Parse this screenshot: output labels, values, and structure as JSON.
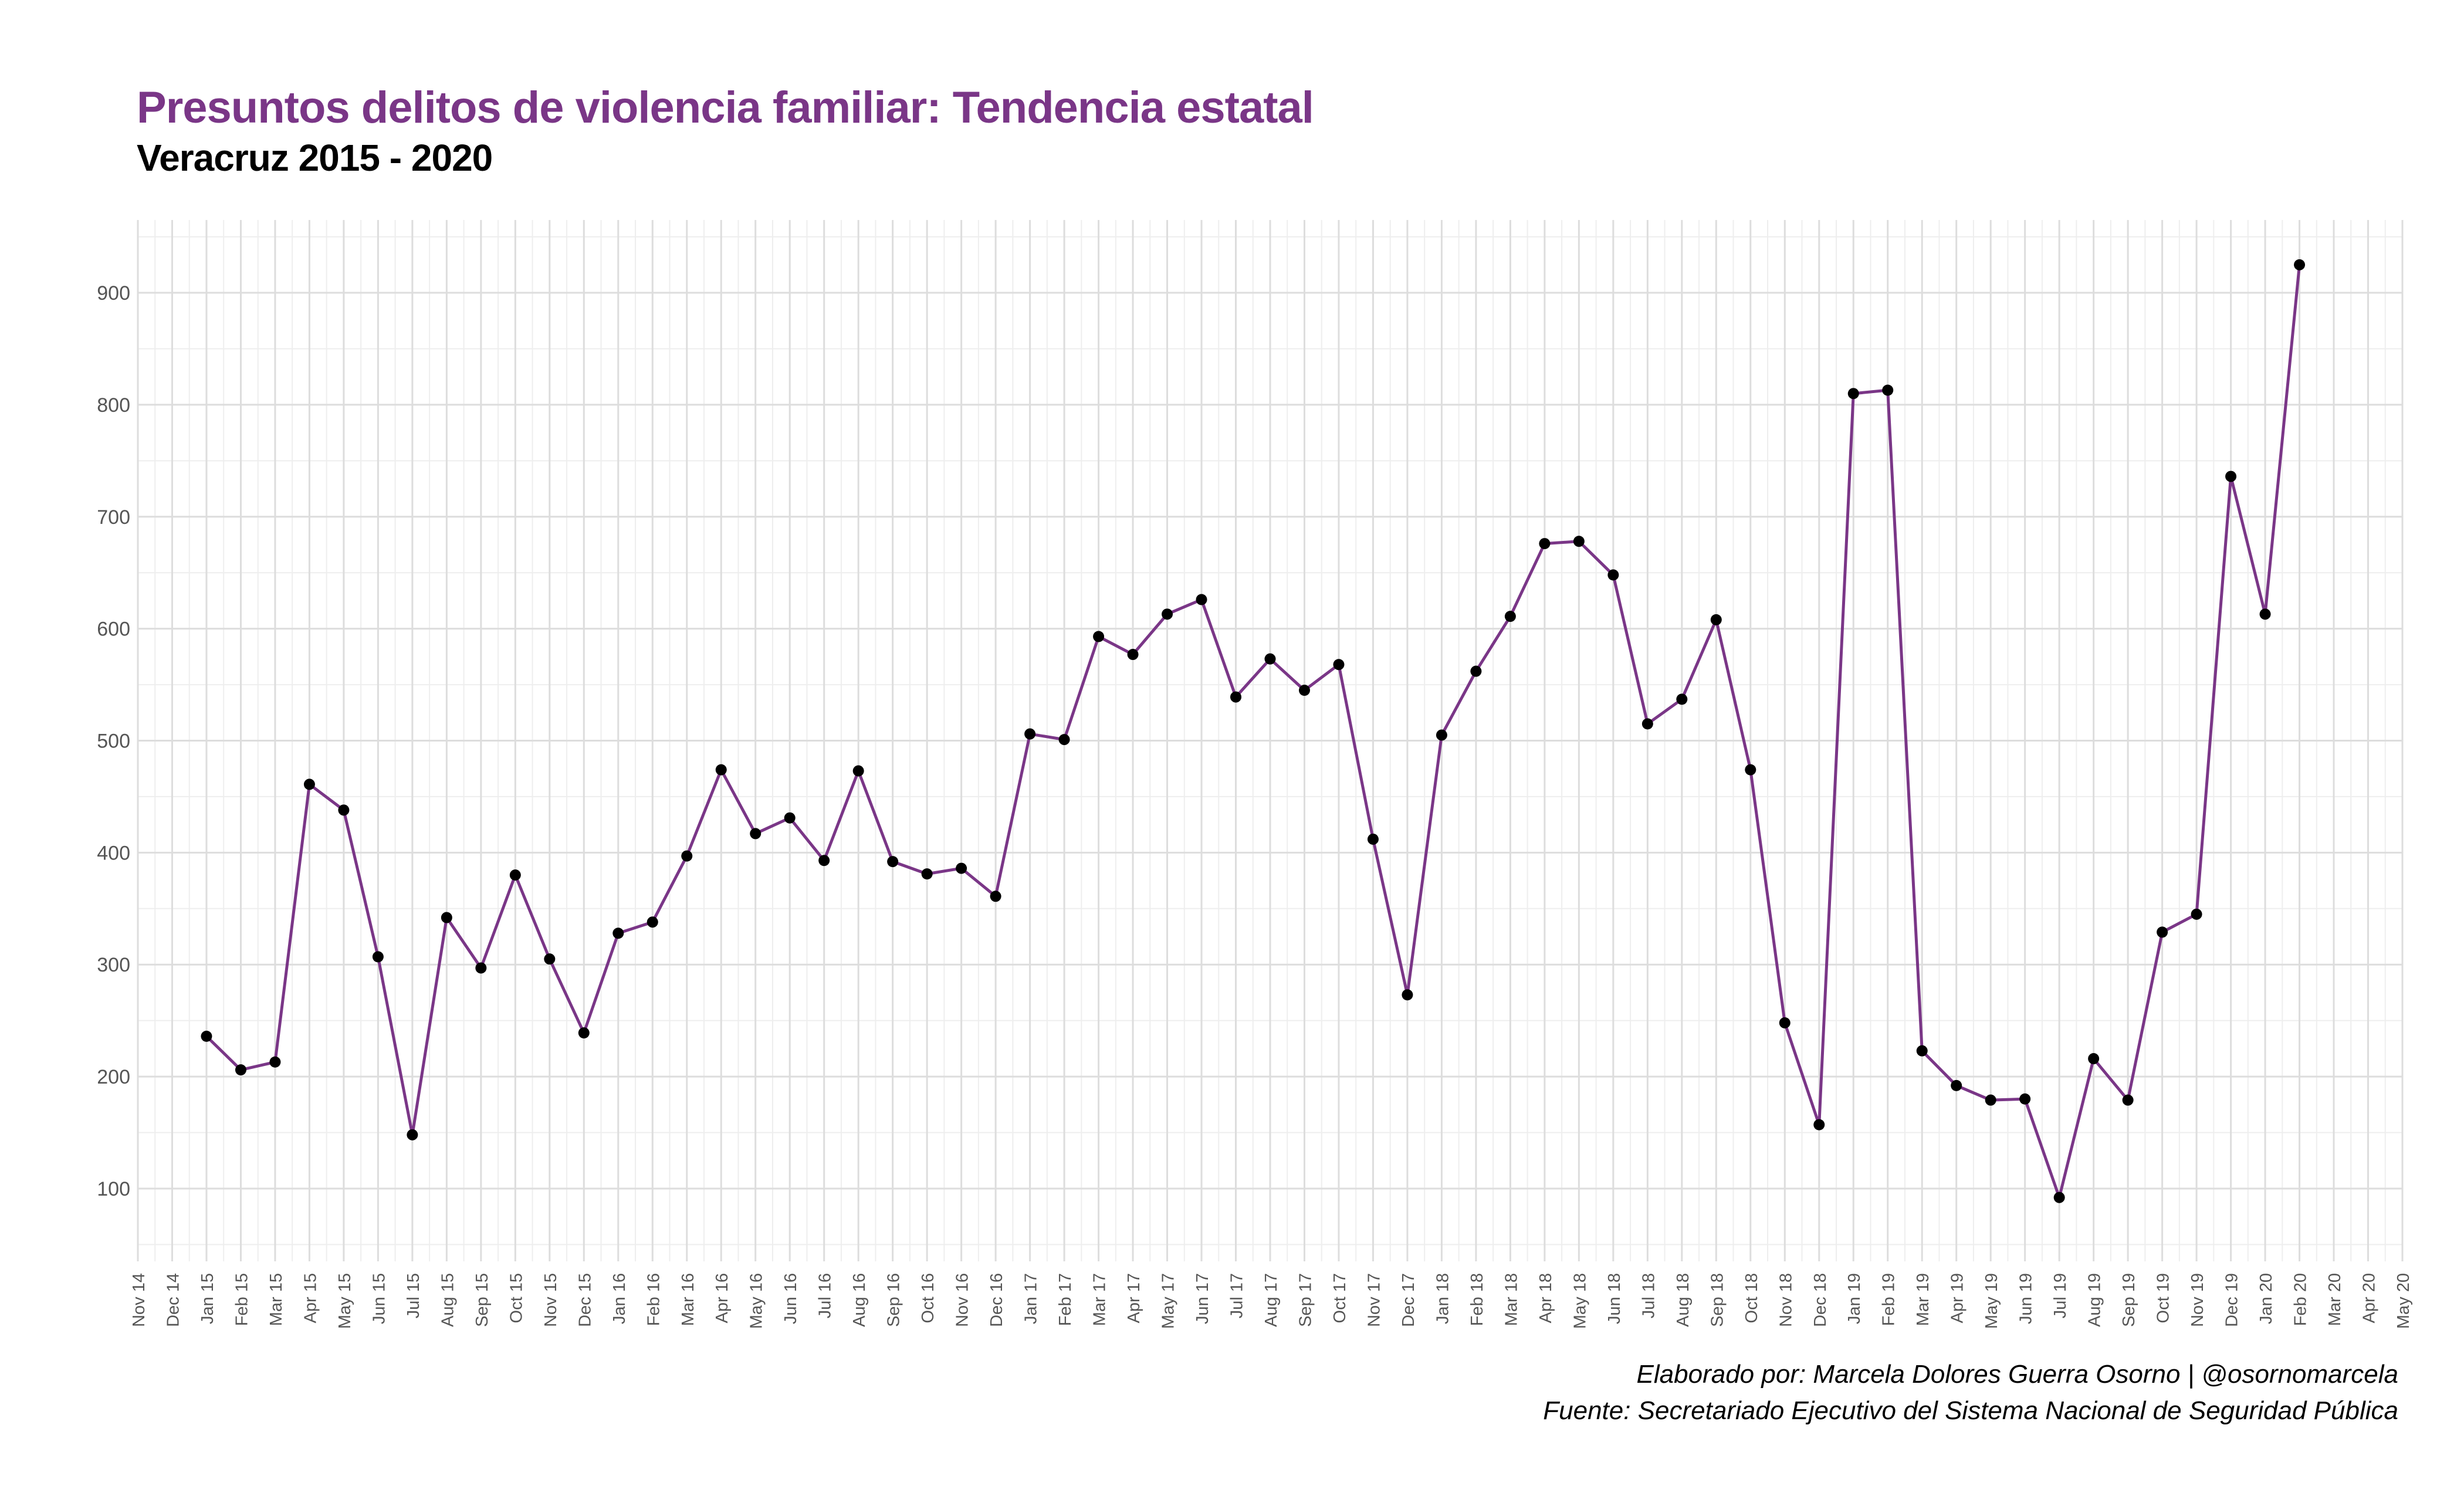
{
  "title": "Presuntos delitos de violencia familiar: Tendencia estatal",
  "subtitle": "Veracruz 2015 - 2020",
  "caption_author": "Elaborado por: Marcela Dolores Guerra Osorno | @osornomarcela",
  "caption_source": "Fuente: Secretariado Ejecutivo del Sistema Nacional de Seguridad Pública",
  "colors": {
    "title": "#7a3687",
    "line": "#7a3687",
    "point": "#000000",
    "grid": "#dddddd"
  },
  "chart_data": {
    "type": "line",
    "title": "Presuntos delitos de violencia familiar: Tendencia estatal",
    "subtitle": "Veracruz 2015 - 2020",
    "xlabel": "",
    "ylabel": "",
    "ylim": [
      35,
      965
    ],
    "yticks": [
      100,
      200,
      300,
      400,
      500,
      600,
      700,
      800,
      900
    ],
    "grid": true,
    "x_tick_labels": [
      "Nov 14",
      "Dec 14",
      "Jan 15",
      "Feb 15",
      "Mar 15",
      "Apr 15",
      "May 15",
      "Jun 15",
      "Jul 15",
      "Aug 15",
      "Sep 15",
      "Oct 15",
      "Nov 15",
      "Dec 15",
      "Jan 16",
      "Feb 16",
      "Mar 16",
      "Apr 16",
      "May 16",
      "Jun 16",
      "Jul 16",
      "Aug 16",
      "Sep 16",
      "Oct 16",
      "Nov 16",
      "Dec 16",
      "Jan 17",
      "Feb 17",
      "Mar 17",
      "Apr 17",
      "May 17",
      "Jun 17",
      "Jul 17",
      "Aug 17",
      "Sep 17",
      "Oct 17",
      "Nov 17",
      "Dec 17",
      "Jan 18",
      "Feb 18",
      "Mar 18",
      "Apr 18",
      "May 18",
      "Jun 18",
      "Jul 18",
      "Aug 18",
      "Sep 18",
      "Oct 18",
      "Nov 18",
      "Dec 18",
      "Jan 19",
      "Feb 19",
      "Mar 19",
      "Apr 19",
      "May 19",
      "Jun 19",
      "Jul 19",
      "Aug 19",
      "Sep 19",
      "Oct 19",
      "Nov 19",
      "Dec 19",
      "Jan 20",
      "Feb 20",
      "Mar 20",
      "Apr 20",
      "May 20"
    ],
    "series": [
      {
        "x": [
          "Jan 15",
          "Feb 15",
          "Mar 15",
          "Apr 15",
          "May 15",
          "Jun 15",
          "Jul 15",
          "Aug 15",
          "Sep 15",
          "Oct 15",
          "Nov 15",
          "Dec 15",
          "Jan 16",
          "Feb 16",
          "Mar 16",
          "Apr 16",
          "May 16",
          "Jun 16",
          "Jul 16",
          "Aug 16",
          "Sep 16",
          "Oct 16",
          "Nov 16",
          "Dec 16",
          "Jan 17",
          "Feb 17",
          "Mar 17",
          "Apr 17",
          "May 17",
          "Jun 17",
          "Jul 17",
          "Aug 17",
          "Sep 17",
          "Oct 17",
          "Nov 17",
          "Dec 17",
          "Jan 18",
          "Feb 18",
          "Mar 18",
          "Apr 18",
          "May 18",
          "Jun 18",
          "Jul 18",
          "Aug 18",
          "Sep 18",
          "Oct 18",
          "Nov 18",
          "Dec 18",
          "Jan 19",
          "Feb 19",
          "Mar 19",
          "Apr 19",
          "May 19",
          "Jun 19",
          "Jul 19",
          "Aug 19",
          "Sep 19",
          "Oct 19",
          "Nov 19",
          "Dec 19",
          "Jan 20",
          "Feb 20"
        ],
        "values": [
          236,
          206,
          213,
          461,
          438,
          307,
          148,
          342,
          297,
          380,
          305,
          239,
          328,
          338,
          397,
          474,
          417,
          431,
          393,
          473,
          392,
          381,
          386,
          361,
          506,
          501,
          593,
          577,
          613,
          626,
          539,
          573,
          545,
          568,
          412,
          273,
          505,
          562,
          611,
          676,
          678,
          648,
          515,
          537,
          608,
          474,
          248,
          157,
          810,
          813,
          223,
          192,
          179,
          180,
          92,
          216,
          179,
          329,
          345,
          736,
          613,
          925
        ]
      }
    ]
  }
}
